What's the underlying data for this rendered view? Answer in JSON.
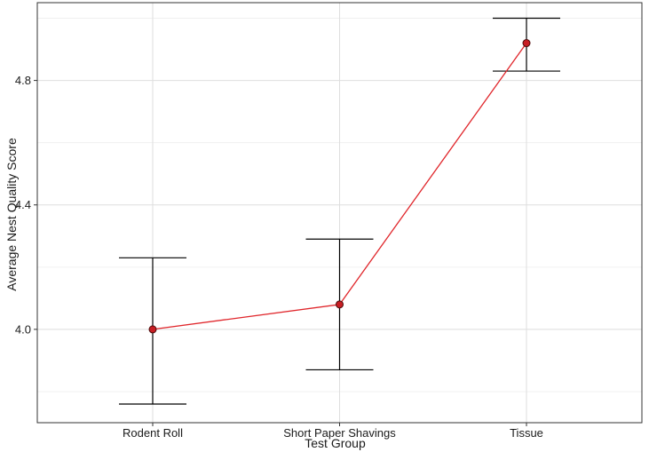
{
  "chart_data": {
    "type": "line",
    "title": "",
    "xlabel": "Test Group",
    "ylabel": "Average Nest Quality Score",
    "categories": [
      "Rodent Roll",
      "Short Paper Shavings",
      "Tissue"
    ],
    "series": [
      {
        "values": [
          4.0,
          4.08,
          4.92
        ],
        "error_lower": [
          3.76,
          3.87,
          4.83
        ],
        "error_upper": [
          4.23,
          4.29,
          5.0
        ]
      }
    ],
    "ylim": [
      3.7,
      5.05
    ],
    "yticks": [
      4.0,
      4.4,
      4.8
    ],
    "ytick_labels": [
      "4.0",
      "4.4",
      "4.8"
    ],
    "grid": true,
    "colors": {
      "line": "#e0262b",
      "point_fill": "#c81e24",
      "point_edge": "#4a0a0a",
      "errorbar": "#000000"
    }
  }
}
